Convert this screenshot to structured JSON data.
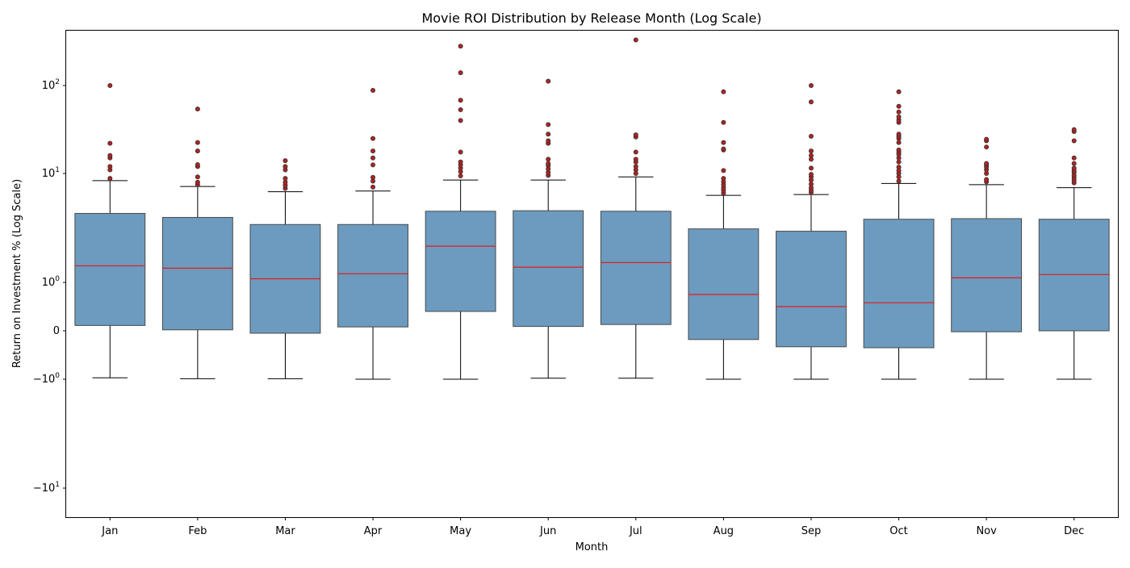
{
  "chart_data": {
    "type": "box",
    "title": "Movie ROI Distribution by Release Month (Log Scale)",
    "xlabel": "Month",
    "ylabel": "Return on Investment % (Log Scale)",
    "yscale": "symlog",
    "yticks": [
      {
        "value": 100,
        "base": "10",
        "exp": "2"
      },
      {
        "value": 10,
        "base": "10",
        "exp": "1"
      },
      {
        "value": 1,
        "base": "10",
        "exp": "0"
      },
      {
        "value": 0,
        "base": "0",
        "exp": ""
      },
      {
        "value": -1,
        "base": "−10",
        "exp": "0"
      },
      {
        "value": -10,
        "base": "−10",
        "exp": "1"
      }
    ],
    "ylim": [
      -20,
      330
    ],
    "grid": false,
    "colors": {
      "box_fill": "#6c9bbf",
      "box_edge": "#4a4a4a",
      "median": "#e41a1c",
      "outlier": "#b22222",
      "outlier_edge": "#333333"
    },
    "categories": [
      "Jan",
      "Feb",
      "Mar",
      "Apr",
      "May",
      "Jun",
      "Jul",
      "Aug",
      "Sep",
      "Oct",
      "Nov",
      "Dec"
    ],
    "boxes": [
      {
        "whislo": -0.97,
        "q1": 0.11,
        "med": 1.42,
        "q3": 4.3,
        "whishi": 8.6,
        "fliers": [
          9.0,
          11.0,
          12.0,
          15.0,
          16.0,
          22.0,
          100.0
        ]
      },
      {
        "whislo": -0.99,
        "q1": 0.02,
        "med": 1.35,
        "q3": 3.95,
        "whishi": 7.6,
        "fliers": [
          7.9,
          8.3,
          9.3,
          12.0,
          12.6,
          18.0,
          22.5,
          54.0
        ]
      },
      {
        "whislo": -0.99,
        "q1": -0.05,
        "med": 1.08,
        "q3": 3.4,
        "whishi": 6.8,
        "fliers": [
          7.3,
          7.8,
          8.3,
          9.0,
          11.0,
          12.0,
          14.0
        ]
      },
      {
        "whislo": -1.0,
        "q1": 0.08,
        "med": 1.2,
        "q3": 3.4,
        "whishi": 6.9,
        "fliers": [
          7.5,
          8.5,
          9.2,
          12.5,
          15.0,
          18.0,
          25.0,
          88.0
        ]
      },
      {
        "whislo": -1.0,
        "q1": 0.4,
        "med": 2.15,
        "q3": 4.5,
        "whishi": 8.7,
        "fliers": [
          9.5,
          10.5,
          11.5,
          12.5,
          13.5,
          17.5,
          40.0,
          53.0,
          68.0,
          140.0,
          280.0
        ]
      },
      {
        "whislo": -0.98,
        "q1": 0.09,
        "med": 1.38,
        "q3": 4.55,
        "whishi": 8.7,
        "fliers": [
          9.6,
          10.3,
          11.3,
          12.3,
          13.0,
          14.5,
          22.0,
          23.5,
          28.0,
          36.0,
          112.0
        ]
      },
      {
        "whislo": -0.98,
        "q1": 0.13,
        "med": 1.52,
        "q3": 4.5,
        "whishi": 9.3,
        "fliers": [
          10.0,
          11.0,
          12.0,
          13.5,
          14.5,
          17.5,
          26.0,
          27.5,
          330.0
        ]
      },
      {
        "whislo": -1.0,
        "q1": -0.18,
        "med": 0.75,
        "q3": 3.1,
        "whishi": 6.3,
        "fliers": [
          6.6,
          7.0,
          7.4,
          7.9,
          8.4,
          9.0,
          10.8,
          18.5,
          19.0,
          22.5,
          38.0,
          85.0
        ]
      },
      {
        "whislo": -1.0,
        "q1": -0.33,
        "med": 0.5,
        "q3": 2.95,
        "whishi": 6.4,
        "fliers": [
          6.7,
          7.0,
          7.4,
          8.0,
          8.7,
          9.3,
          9.8,
          11.5,
          14.5,
          16.0,
          18.0,
          26.5,
          65.0,
          100.0
        ]
      },
      {
        "whislo": -1.0,
        "q1": -0.35,
        "med": 0.58,
        "q3": 3.8,
        "whishi": 8.1,
        "fliers": [
          8.5,
          9.3,
          10.0,
          10.8,
          11.8,
          13.5,
          15.0,
          16.5,
          17.5,
          18.5,
          22.5,
          25.0,
          26.5,
          28.0,
          38.0,
          40.5,
          44.0,
          50.0,
          58.0,
          85.0
        ]
      },
      {
        "whislo": -1.0,
        "q1": -0.02,
        "med": 1.1,
        "q3": 3.85,
        "whishi": 7.9,
        "fliers": [
          8.4,
          8.8,
          10.0,
          11.0,
          11.8,
          12.5,
          13.0,
          20.0,
          23.5,
          24.5
        ]
      },
      {
        "whislo": -1.0,
        "q1": 0.0,
        "med": 1.18,
        "q3": 3.8,
        "whishi": 7.4,
        "fliers": [
          8.2,
          8.7,
          9.2,
          9.6,
          10.3,
          10.8,
          11.5,
          13.0,
          15.0,
          23.5,
          30.0,
          31.5
        ]
      }
    ]
  }
}
